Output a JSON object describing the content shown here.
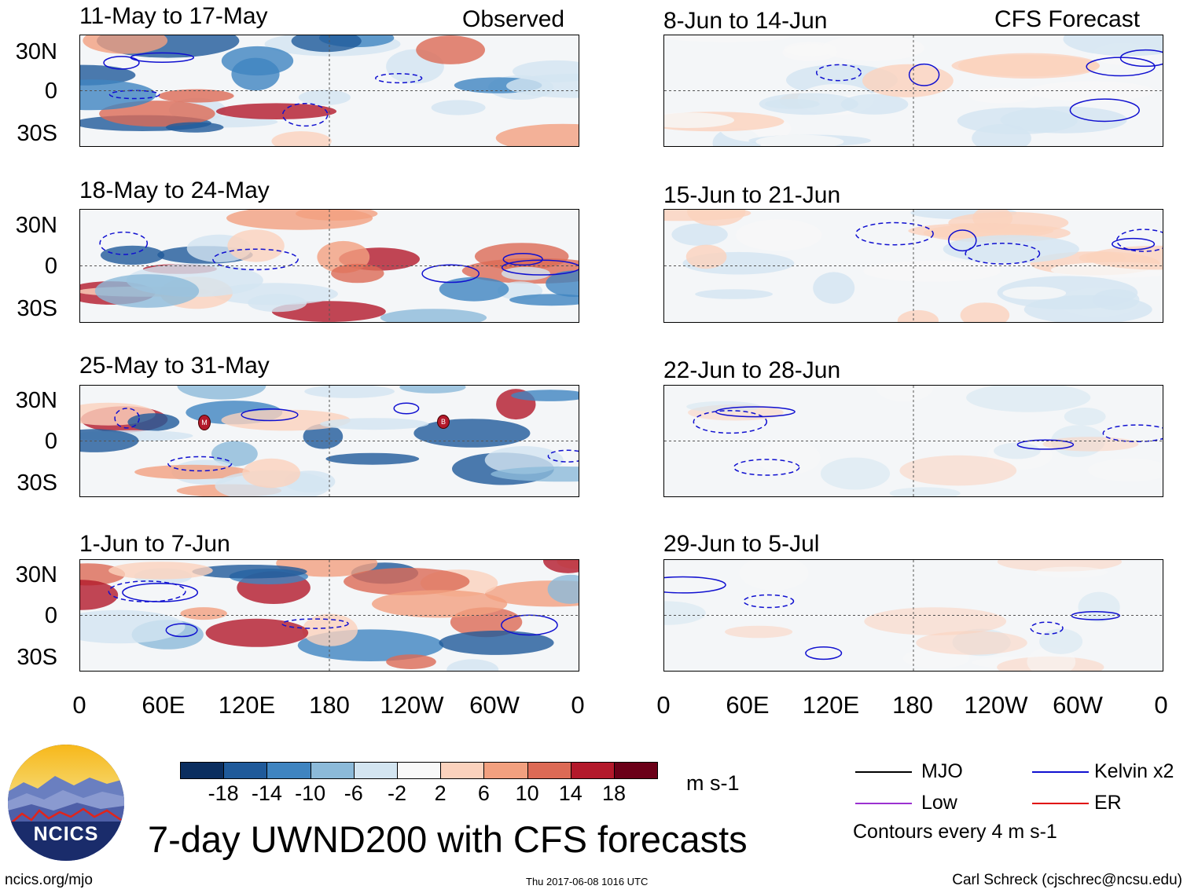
{
  "chart_data": {
    "type": "heatmap",
    "title": "7-day UWND200 with CFS forecasts",
    "variable": "UWND200",
    "units": "m s-1",
    "contour_note": "Contours every 4 m s-1",
    "left_column_label": "Observed",
    "right_column_label": "CFS Forecast",
    "y_ticks": [
      "30N",
      "0",
      "30S"
    ],
    "x_ticks": [
      "0",
      "60E",
      "120E",
      "180",
      "120W",
      "60W",
      "0"
    ],
    "observed_panels": [
      {
        "period": "11-May to 17-May"
      },
      {
        "period": "18-May to 24-May"
      },
      {
        "period": "25-May to 31-May"
      },
      {
        "period": "1-Jun to 7-Jun"
      }
    ],
    "forecast_panels": [
      {
        "period": "8-Jun to 14-Jun"
      },
      {
        "period": "15-Jun to 21-Jun"
      },
      {
        "period": "22-Jun to 28-Jun"
      },
      {
        "period": "29-Jun to 5-Jul"
      }
    ],
    "colorbar": {
      "ticks": [
        "-18",
        "-14",
        "-10",
        "-6",
        "-2",
        "2",
        "6",
        "10",
        "14",
        "18"
      ],
      "colors": [
        "#0b2e5f",
        "#1f5a9a",
        "#3f84c0",
        "#8cbad9",
        "#d3e5f1",
        "#f8f8f8",
        "#fbd2bd",
        "#f2a07f",
        "#dc6a55",
        "#b3192b",
        "#6b0018"
      ]
    },
    "legend": [
      {
        "label": "MJO",
        "color": "#000000"
      },
      {
        "label": "Kelvin x2",
        "color": "#1010d0"
      },
      {
        "label": "Low",
        "color": "#9b30d0"
      },
      {
        "label": "ER",
        "color": "#e00000"
      }
    ],
    "storm_markers": [
      "M",
      "B"
    ]
  },
  "logo": {
    "text": "NCICS"
  },
  "footer": {
    "left": "ncics.org/mjo",
    "center": "Thu 2017-06-08 1016 UTC",
    "right": "Carl Schreck (cjschrec@ncsu.edu)"
  }
}
